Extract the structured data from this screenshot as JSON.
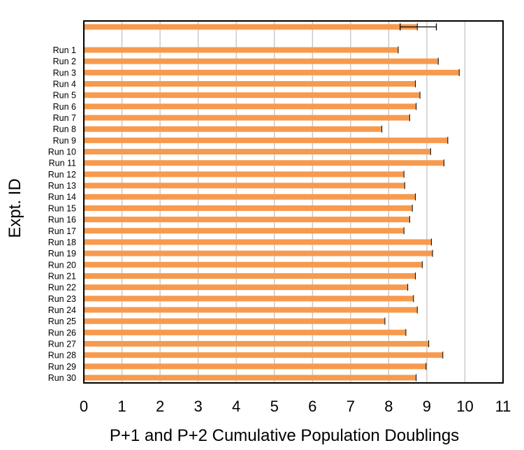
{
  "chart_data": {
    "type": "bar",
    "orientation": "horizontal",
    "xlabel": "P+1 and P+2 Cumulative Population Doublings",
    "ylabel": "Expt. ID",
    "xlim": [
      0,
      11
    ],
    "x_ticks": [
      "0",
      "1",
      "2",
      "3",
      "4",
      "5",
      "6",
      "7",
      "8",
      "9",
      "10",
      "11"
    ],
    "grid": "vertical",
    "bar_color": "#F79A4E",
    "summary_bar": {
      "label": "",
      "value": 8.75,
      "error_low": 8.3,
      "error_high": 9.25
    },
    "categories": [
      "Run 1",
      "Run 2",
      "Run 3",
      "Run 4",
      "Run 5",
      "Run 6",
      "Run 7",
      "Run 8",
      "Run 9",
      "Run 10",
      "Run 11",
      "Run 12",
      "Run 13",
      "Run 14",
      "Run 15",
      "Run 16",
      "Run 17",
      "Run 18",
      "Run 19",
      "Run 20",
      "Run 21",
      "Run 22",
      "Run 23",
      "Run 24",
      "Run 25",
      "Run 26",
      "Run 27",
      "Run 28",
      "Run 29",
      "Run 30"
    ],
    "values": [
      8.25,
      9.3,
      9.85,
      8.7,
      8.82,
      8.72,
      8.55,
      7.82,
      9.55,
      9.1,
      9.45,
      8.4,
      8.42,
      8.7,
      8.62,
      8.55,
      8.4,
      9.12,
      9.15,
      8.88,
      8.7,
      8.5,
      8.65,
      8.75,
      7.9,
      8.45,
      9.05,
      9.42,
      8.98,
      8.72
    ]
  }
}
